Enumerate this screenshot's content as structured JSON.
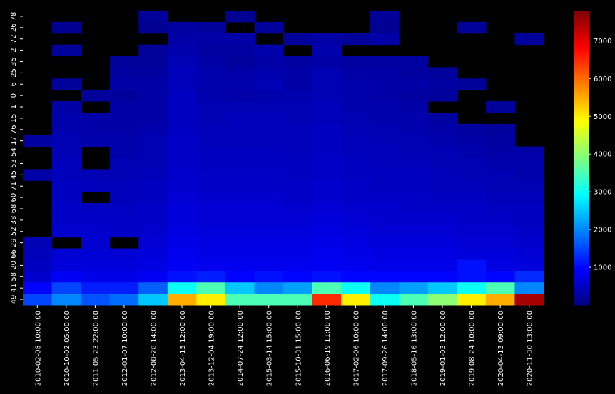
{
  "chart_data": {
    "type": "heatmap",
    "colormap": "jet",
    "x": [
      "2010-02-08 10:00:00",
      "2010-10-02 05:00:00",
      "2011-05-23 22:00:00",
      "2012-01-07 10:00:00",
      "2012-08-28 14:00:00",
      "2013-04-15 12:00:00",
      "2013-12-04 19:00:00",
      "2014-07-24 12:00:00",
      "2015-03-14 15:00:00",
      "2015-10-31 15:00:00",
      "2016-06-19 11:00:00",
      "2017-02-06 10:00:00",
      "2017-09-26 14:00:00",
      "2018-05-16 13:00:00",
      "2019-01-03 12:00:00",
      "2019-08-24 10:00:00",
      "2020-04-13 09:00:00",
      "2020-11-30 13:00:00"
    ],
    "categories": [
      "78",
      "26",
      "72",
      "2",
      "35",
      "25",
      "6",
      "0",
      "1",
      "15",
      "76",
      "17",
      "54",
      "53",
      "45",
      "71",
      "60",
      "68",
      "38",
      "52",
      "29",
      "66",
      "20",
      "58",
      "41",
      "49"
    ],
    "values": [
      [
        null,
        null,
        null,
        null,
        200,
        null,
        null,
        150,
        null,
        null,
        null,
        null,
        200,
        null,
        null,
        null,
        null,
        null
      ],
      [
        null,
        150,
        null,
        null,
        150,
        250,
        200,
        null,
        200,
        null,
        null,
        null,
        150,
        null,
        null,
        200,
        null,
        null
      ],
      [
        null,
        null,
        null,
        null,
        null,
        300,
        300,
        300,
        null,
        200,
        300,
        200,
        300,
        null,
        null,
        null,
        null,
        200
      ],
      [
        null,
        200,
        null,
        null,
        200,
        350,
        250,
        250,
        350,
        null,
        350,
        null,
        null,
        null,
        null,
        null,
        null,
        null
      ],
      [
        null,
        null,
        null,
        200,
        200,
        400,
        300,
        200,
        300,
        250,
        300,
        250,
        250,
        250,
        null,
        null,
        null,
        null
      ],
      [
        null,
        null,
        null,
        250,
        250,
        450,
        350,
        300,
        350,
        300,
        400,
        300,
        300,
        250,
        200,
        null,
        null,
        null
      ],
      [
        null,
        200,
        null,
        300,
        300,
        450,
        350,
        350,
        400,
        300,
        400,
        350,
        300,
        300,
        250,
        200,
        null,
        null
      ],
      [
        null,
        null,
        200,
        200,
        300,
        500,
        350,
        300,
        350,
        350,
        400,
        350,
        300,
        250,
        200,
        null,
        null,
        null
      ],
      [
        null,
        300,
        null,
        300,
        300,
        500,
        400,
        400,
        400,
        400,
        450,
        350,
        350,
        300,
        null,
        null,
        200,
        null
      ],
      [
        null,
        350,
        300,
        300,
        300,
        500,
        400,
        450,
        450,
        400,
        450,
        400,
        350,
        350,
        250,
        null,
        null,
        null
      ],
      [
        null,
        350,
        300,
        300,
        350,
        500,
        450,
        450,
        450,
        450,
        500,
        400,
        400,
        350,
        300,
        250,
        200,
        null
      ],
      [
        250,
        400,
        350,
        350,
        400,
        550,
        450,
        450,
        450,
        450,
        500,
        450,
        400,
        400,
        350,
        300,
        250,
        null
      ],
      [
        null,
        400,
        null,
        350,
        400,
        550,
        500,
        500,
        500,
        450,
        500,
        450,
        450,
        400,
        400,
        350,
        300,
        300
      ],
      [
        null,
        450,
        null,
        400,
        400,
        550,
        500,
        500,
        500,
        500,
        550,
        500,
        450,
        450,
        400,
        400,
        350,
        350
      ],
      [
        300,
        450,
        400,
        400,
        450,
        600,
        550,
        550,
        550,
        500,
        550,
        500,
        500,
        500,
        450,
        400,
        400,
        350
      ],
      [
        null,
        500,
        450,
        450,
        500,
        600,
        550,
        550,
        550,
        550,
        600,
        550,
        500,
        500,
        450,
        450,
        400,
        400
      ],
      [
        null,
        500,
        null,
        450,
        500,
        650,
        600,
        600,
        600,
        550,
        600,
        550,
        550,
        550,
        500,
        500,
        450,
        450
      ],
      [
        null,
        550,
        500,
        500,
        550,
        700,
        650,
        650,
        650,
        600,
        650,
        600,
        600,
        550,
        550,
        550,
        500,
        500
      ],
      [
        null,
        550,
        550,
        550,
        550,
        700,
        650,
        650,
        650,
        650,
        700,
        650,
        600,
        600,
        600,
        550,
        550,
        500
      ],
      [
        null,
        600,
        600,
        550,
        600,
        750,
        700,
        700,
        700,
        700,
        750,
        700,
        650,
        650,
        650,
        600,
        600,
        550
      ],
      [
        400,
        null,
        600,
        null,
        650,
        800,
        750,
        750,
        750,
        750,
        800,
        750,
        700,
        700,
        700,
        650,
        650,
        600
      ],
      [
        450,
        650,
        650,
        650,
        700,
        850,
        800,
        800,
        800,
        800,
        850,
        800,
        750,
        750,
        750,
        700,
        700,
        650
      ],
      [
        500,
        700,
        700,
        700,
        750,
        900,
        850,
        850,
        850,
        850,
        900,
        850,
        800,
        800,
        800,
        1100,
        750,
        700
      ],
      [
        600,
        900,
        800,
        800,
        900,
        1100,
        1200,
        1000,
        1100,
        1000,
        1100,
        1000,
        1000,
        1000,
        1000,
        1100,
        1000,
        1300
      ],
      [
        1000,
        1500,
        1200,
        1200,
        1700,
        3000,
        3500,
        2500,
        2000,
        2200,
        3500,
        3000,
        2000,
        2200,
        2500,
        3000,
        3500,
        2000
      ],
      [
        1500,
        2000,
        1600,
        1800,
        2500,
        5500,
        5000,
        3500,
        3500,
        3500,
        6500,
        5000,
        3000,
        3500,
        4000,
        5000,
        5500,
        7500
      ]
    ],
    "clim": [
      0,
      7800
    ],
    "cticks": [
      1000,
      2000,
      3000,
      4000,
      5000,
      6000,
      7000
    ]
  }
}
